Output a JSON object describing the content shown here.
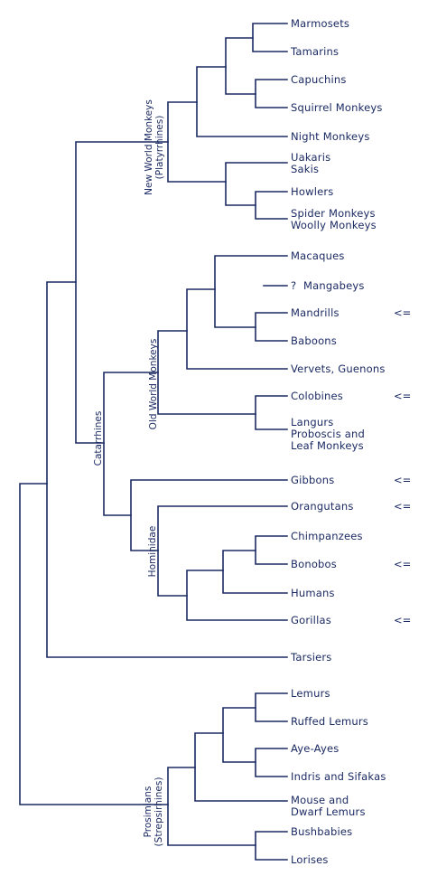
{
  "colors": {
    "line": "#1b2a63",
    "text": "#1b2a63",
    "background": "#ffffff"
  },
  "leaves": {
    "marmosets": "Marmosets",
    "tamarins": "Tamarins",
    "capuchins": "Capuchins",
    "squirrel_monkeys": "Squirrel Monkeys",
    "night_monkeys": "Night Monkeys",
    "uakaris_sakis": "Uakaris\nSakis",
    "howlers": "Howlers",
    "spider_woolly": "Spider Monkeys\nWoolly Monkeys",
    "macaques": "Macaques",
    "mangabeys": "?  Mangabeys",
    "mandrills": "Mandrills",
    "baboons": "Baboons",
    "vervets": "Vervets, Guenons",
    "colobines": "Colobines",
    "langurs": "Langurs\nProboscis and\nLeaf Monkeys",
    "gibbons": "Gibbons",
    "orangutans": "Orangutans",
    "chimpanzees": "Chimpanzees",
    "bonobos": "Bonobos",
    "humans": "Humans",
    "gorillas": "Gorillas",
    "tarsiers": "Tarsiers",
    "lemurs": "Lemurs",
    "ruffed_lemurs": "Ruffed Lemurs",
    "aye_ayes": "Aye-Ayes",
    "indris": "Indris and Sifakas",
    "mouse_dwarf": "Mouse and\nDwarf Lemurs",
    "bushbabies": "Bushbabies",
    "lorises": "Lorises"
  },
  "markers": {
    "mandrills": "<=",
    "colobines": "<=",
    "gibbons": "<=",
    "orangutans": "<=",
    "bonobos": "<=",
    "gorillas": "<="
  },
  "groups": {
    "new_world": "New World Monkeys\n(Platyrrhines)",
    "old_world": "Old World Monkeys",
    "catarrhines": "Catarrhines",
    "hominidae": "Hominidae",
    "prosimians": "Prosimians\n(Strepsirhines)"
  }
}
